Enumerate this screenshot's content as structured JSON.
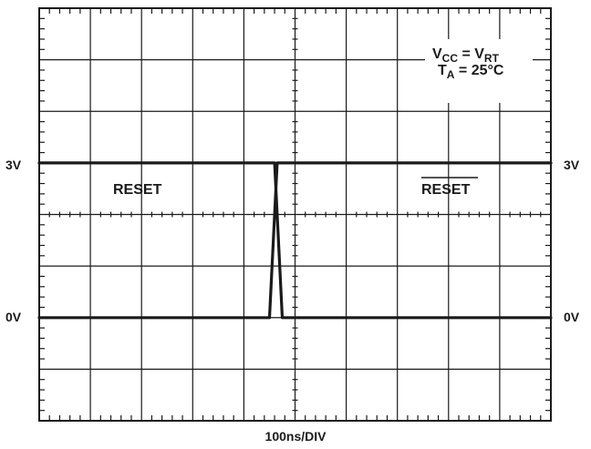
{
  "chart_data": {
    "type": "line",
    "title": "",
    "xlabel": "100ns/DIV",
    "ylabel": "",
    "x_divisions": 10,
    "y_divisions": 8,
    "y_ref": {
      "left_high": "3V",
      "left_low": "0V",
      "right_high": "3V",
      "right_low": "0V"
    },
    "conditions": {
      "vcc": {
        "main": "V",
        "sub1": "CC",
        "mid": " = V",
        "sub2": "RT"
      },
      "ta": {
        "main": "T",
        "sub": "A",
        "rest": " = 25°C"
      }
    },
    "series": [
      {
        "name": "RESET",
        "label_overline": false,
        "x_div": [
          0,
          4.3,
          4.6,
          4.75,
          10
        ],
        "y_div": [
          3,
          3,
          3,
          0,
          0
        ]
      },
      {
        "name": "RESET",
        "label_overline": true,
        "x_div": [
          0,
          4.3,
          4.5,
          4.65,
          10
        ],
        "y_div": [
          0,
          0,
          0,
          3,
          3
        ]
      }
    ],
    "grid": true
  }
}
